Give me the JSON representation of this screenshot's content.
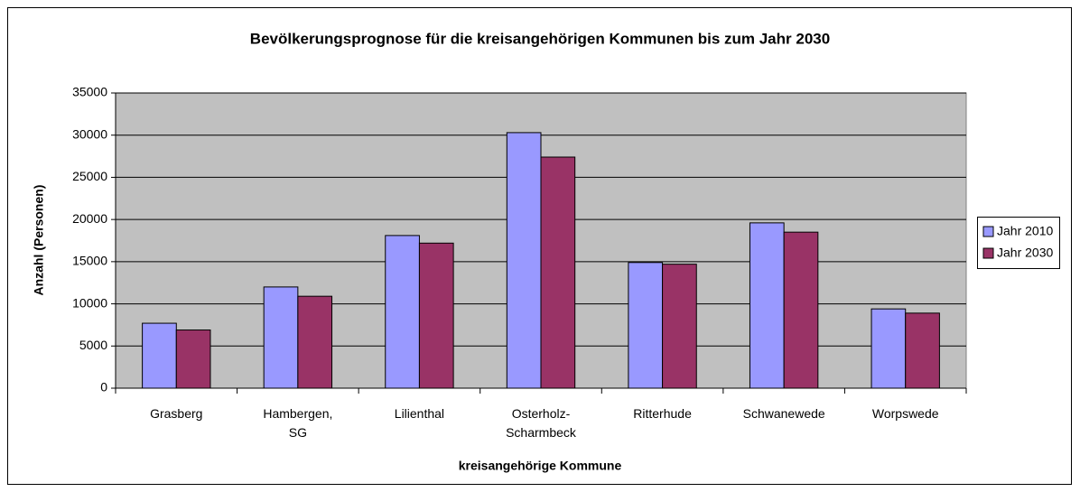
{
  "chart_data": {
    "type": "bar",
    "title": "Bevölkerungsprognose für die kreisangehörigen Kommunen bis zum Jahr 2030",
    "x_label": "kreisangehörige Kommune",
    "y_label": "Anzahl (Personen)",
    "categories": [
      "Grasberg",
      "Hambergen,\nSG",
      "Lilienthal",
      "Osterholz-\nScharmbeck",
      "Ritterhude",
      "Schwanewede",
      "Worpswede"
    ],
    "series": [
      {
        "name": "Jahr 2010",
        "color": "#9999ff",
        "values": [
          7700,
          12000,
          18100,
          30300,
          14900,
          19600,
          9400
        ]
      },
      {
        "name": "Jahr 2030",
        "color": "#993366",
        "values": [
          6900,
          10900,
          17200,
          27400,
          14700,
          18500,
          8900
        ]
      }
    ],
    "ylim": [
      0,
      35000
    ],
    "yticks": [
      0,
      5000,
      10000,
      15000,
      20000,
      25000,
      30000,
      35000
    ],
    "grid": true,
    "legend": "right",
    "plot_background": "#c0c0c0"
  }
}
